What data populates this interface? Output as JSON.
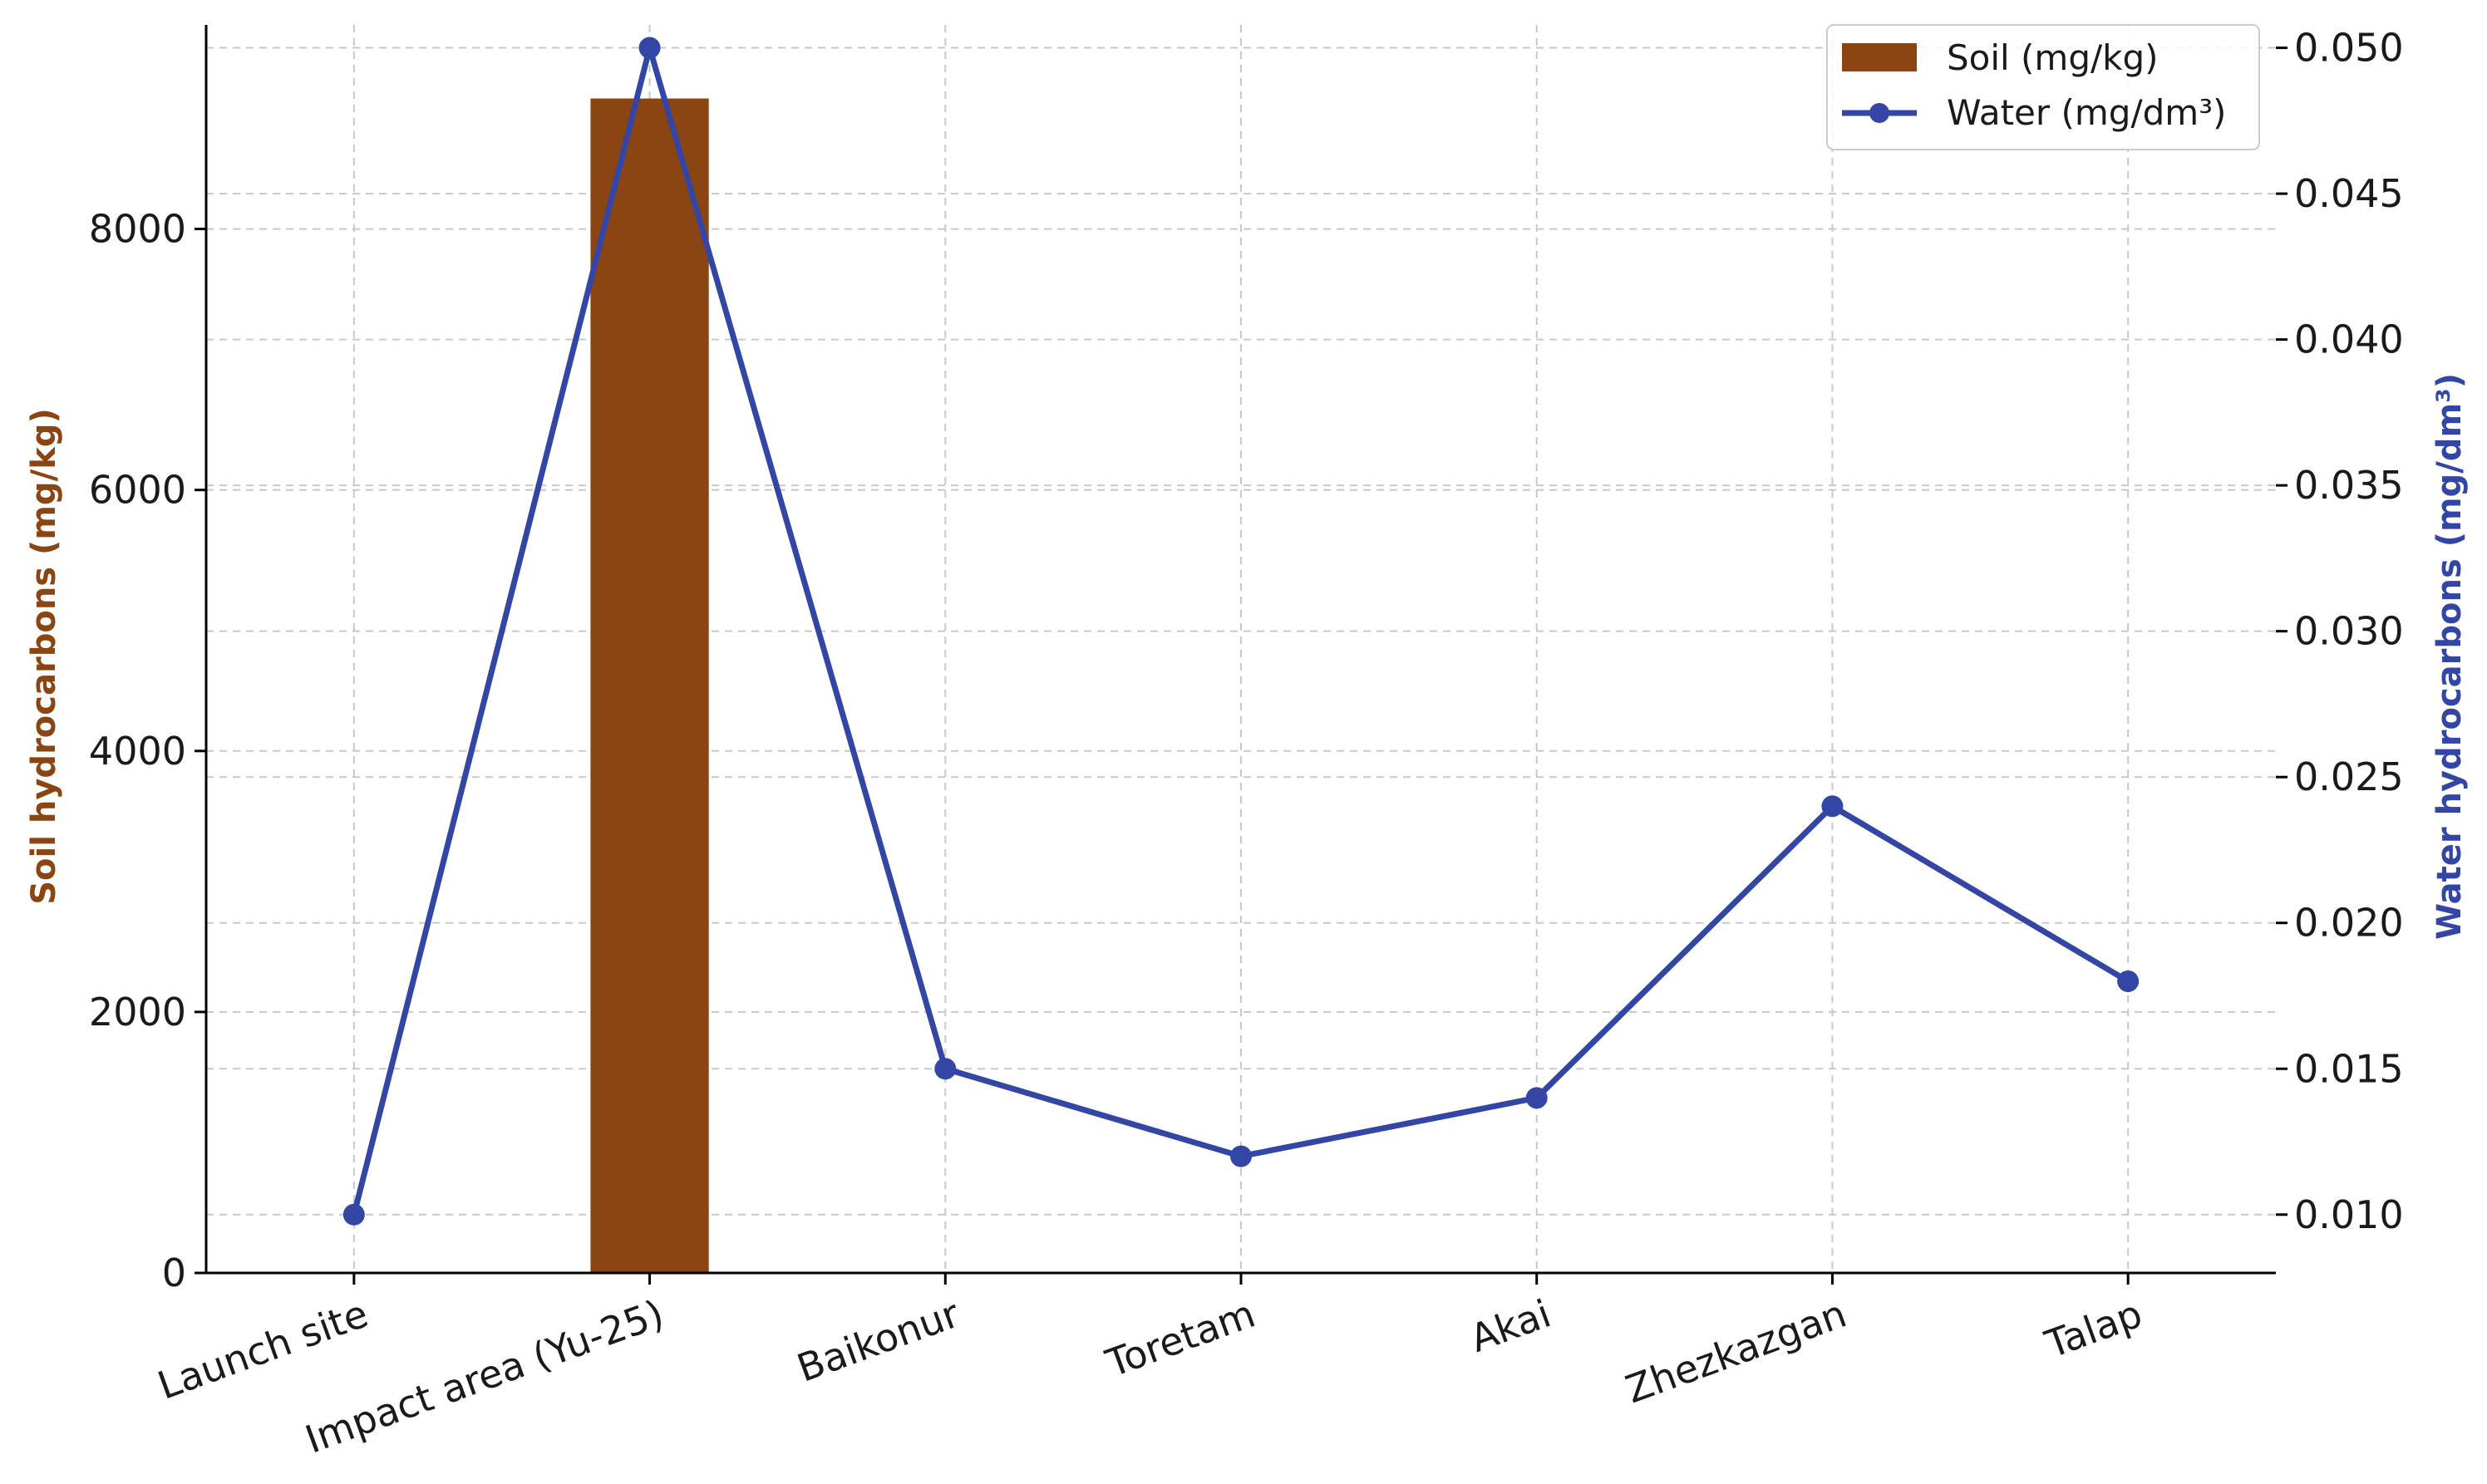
{
  "chart_data": {
    "type": "bar",
    "categories": [
      "Launch site",
      "Impact area (Yu-25)",
      "Baikonur",
      "Toretam",
      "Akai",
      "Zhezkazgan",
      "Talap"
    ],
    "series": [
      {
        "name": "Soil (mg/kg)",
        "type": "bar",
        "axis": "left",
        "color": "#8B4513",
        "values": [
          0,
          9000,
          0,
          0,
          0,
          5,
          5
        ]
      },
      {
        "name": "Water (mg/dm³)",
        "type": "line",
        "axis": "right",
        "color": "#3346A6",
        "values": [
          0.01,
          0.05,
          0.015,
          0.012,
          0.014,
          0.024,
          0.018
        ]
      }
    ],
    "ylabel_left": "Soil hydrocarbons (mg/kg)",
    "ylabel_right": "Water hydrocarbons (mg/dm³)",
    "ylim_left": [
      0,
      9500
    ],
    "yticks_left": [
      "0",
      "2000",
      "4000",
      "6000",
      "8000"
    ],
    "ylim_right": [
      0.008,
      0.0505
    ],
    "yticks_right": [
      "0.010",
      "0.015",
      "0.020",
      "0.025",
      "0.030",
      "0.035",
      "0.040",
      "0.045",
      "0.050"
    ],
    "grid": true,
    "legend_position": "top-right",
    "left_label_color": "#8B4513",
    "right_label_color": "#3346A6"
  }
}
